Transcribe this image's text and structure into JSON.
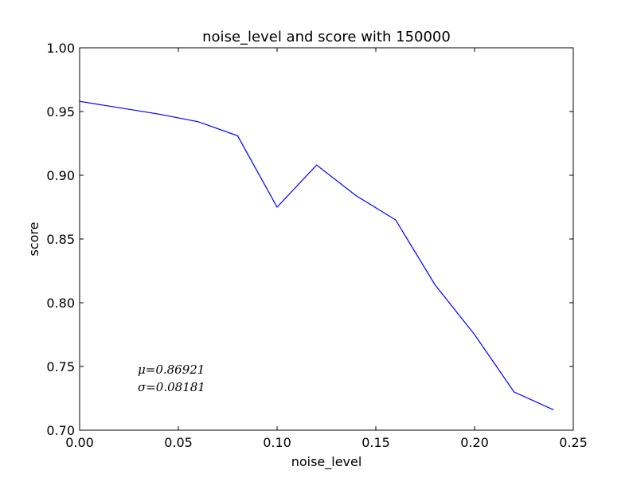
{
  "chart_data": {
    "type": "line",
    "title": "noise_level and score with 150000",
    "xlabel": "noise_level",
    "ylabel": "score",
    "xlim": [
      0.0,
      0.25
    ],
    "ylim": [
      0.7,
      1.0
    ],
    "xticks": [
      "0.00",
      "0.05",
      "0.10",
      "0.15",
      "0.20",
      "0.25"
    ],
    "yticks": [
      "0.70",
      "0.75",
      "0.80",
      "0.85",
      "0.90",
      "0.95",
      "1.00"
    ],
    "grid": false,
    "series": [
      {
        "color": "#0000ff",
        "x": [
          0.0,
          0.02,
          0.04,
          0.06,
          0.08,
          0.1,
          0.12,
          0.14,
          0.16,
          0.18,
          0.2,
          0.22,
          0.24
        ],
        "y": [
          0.958,
          0.953,
          0.948,
          0.942,
          0.931,
          0.875,
          0.908,
          0.884,
          0.865,
          0.814,
          0.775,
          0.73,
          0.716
        ]
      }
    ],
    "annotations": [
      "μ=0.86921",
      "σ=0.08181"
    ]
  }
}
